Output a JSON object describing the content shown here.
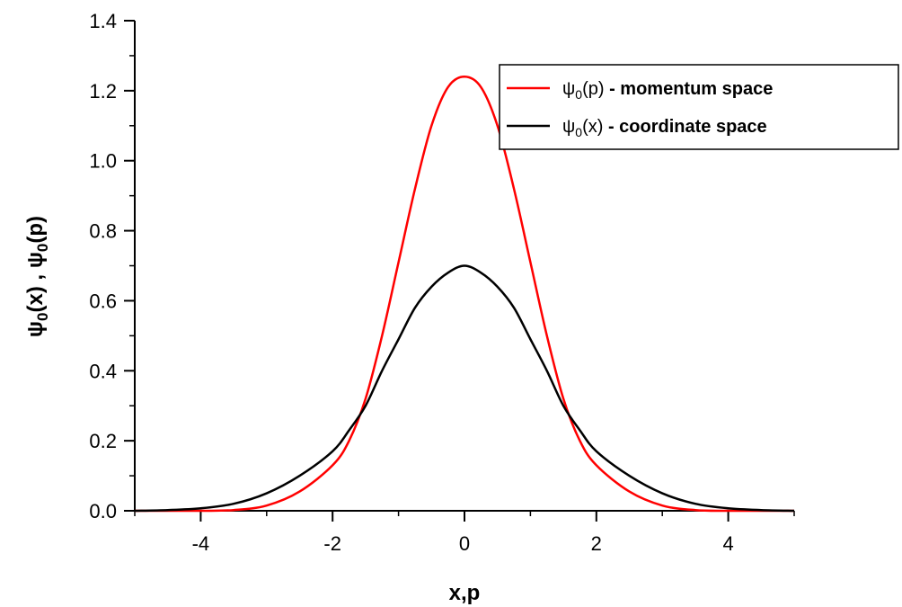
{
  "chart_data": {
    "type": "line",
    "title": "",
    "xlabel": "x,p",
    "ylabel": {
      "main": "ψ",
      "sub": "0",
      "parts": [
        "(x) , ",
        "(p)"
      ]
    },
    "xlim": [
      -5,
      5
    ],
    "ylim": [
      0,
      1.4
    ],
    "x_ticks": [
      -4,
      -2,
      0,
      2,
      4
    ],
    "x_tick_labels": [
      "-4",
      "-2",
      "0",
      "2",
      "4"
    ],
    "x_minor_step": 1,
    "y_ticks": [
      0.0,
      0.2,
      0.4,
      0.6,
      0.8,
      1.0,
      1.2,
      1.4
    ],
    "y_tick_labels": [
      "0.0",
      "0.2",
      "0.4",
      "0.6",
      "0.8",
      "1.0",
      "1.2",
      "1.4"
    ],
    "y_minor_step": 0.1,
    "grid": false,
    "legend": {
      "position": "top-right",
      "entries": [
        {
          "symbol": "ψ",
          "sub": "0",
          "arg": "(p)",
          "text": " - momentum space",
          "color": "#ff0000"
        },
        {
          "symbol": "ψ",
          "sub": "0",
          "arg": "(x)",
          "text": " - coordinate space",
          "color": "#000000"
        }
      ]
    },
    "series": [
      {
        "key": "momentum",
        "color": "#ff0000",
        "x": [
          -5.0,
          -4.0,
          -3.5,
          -3.0,
          -2.5,
          -2.0,
          -1.75,
          -1.5,
          -1.25,
          -1.0,
          -0.75,
          -0.5,
          -0.25,
          0.0,
          0.25,
          0.5,
          0.75,
          1.0,
          1.25,
          1.5,
          1.75,
          2.0,
          2.5,
          3.0,
          3.5,
          4.0,
          5.0
        ],
        "y": [
          0.0,
          0.0,
          0.002,
          0.015,
          0.055,
          0.13,
          0.2,
          0.32,
          0.5,
          0.71,
          0.92,
          1.1,
          1.21,
          1.24,
          1.21,
          1.1,
          0.92,
          0.71,
          0.5,
          0.32,
          0.2,
          0.13,
          0.055,
          0.015,
          0.002,
          0.0,
          0.0
        ]
      },
      {
        "key": "coordinate",
        "color": "#000000",
        "x": [
          -5.0,
          -4.5,
          -4.0,
          -3.5,
          -3.0,
          -2.5,
          -2.0,
          -1.75,
          -1.5,
          -1.25,
          -1.0,
          -0.75,
          -0.5,
          -0.25,
          0.0,
          0.25,
          0.5,
          0.75,
          1.0,
          1.25,
          1.5,
          1.75,
          2.0,
          2.5,
          3.0,
          3.5,
          4.0,
          4.5,
          5.0
        ],
        "y": [
          0.0,
          0.002,
          0.007,
          0.02,
          0.05,
          0.1,
          0.17,
          0.23,
          0.3,
          0.4,
          0.49,
          0.58,
          0.64,
          0.68,
          0.7,
          0.68,
          0.64,
          0.58,
          0.49,
          0.4,
          0.3,
          0.23,
          0.17,
          0.1,
          0.05,
          0.02,
          0.007,
          0.002,
          0.0
        ]
      }
    ]
  }
}
